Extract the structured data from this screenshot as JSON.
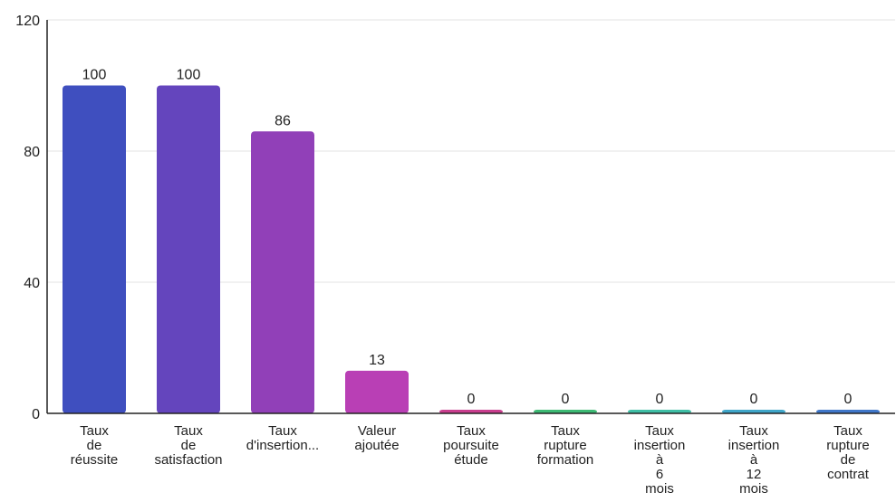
{
  "chart_data": {
    "type": "bar",
    "title": "",
    "xlabel": "",
    "ylabel": "",
    "ylim": [
      0,
      120
    ],
    "yticks": [
      0,
      40,
      80,
      120
    ],
    "grid": true,
    "categories": [
      [
        "Taux",
        "de",
        "réussite"
      ],
      [
        "Taux",
        "de",
        "satisfaction"
      ],
      [
        "Taux",
        "d'insertion..."
      ],
      [
        "Valeur",
        "ajoutée"
      ],
      [
        "Taux",
        "poursuite",
        "étude"
      ],
      [
        "Taux",
        "rupture",
        "formation"
      ],
      [
        "Taux",
        "insertion",
        "à",
        "6",
        "mois"
      ],
      [
        "Taux",
        "insertion",
        "à",
        "12",
        "mois"
      ],
      [
        "Taux",
        "rupture",
        "de",
        "contrat"
      ]
    ],
    "values": [
      100,
      100,
      86,
      13,
      0,
      0,
      0,
      0,
      0
    ],
    "value_labels": [
      "100",
      "100",
      "86",
      "13",
      "0",
      "0",
      "0",
      "0",
      "0"
    ],
    "colors": [
      "#3f4fbf",
      "#6445bd",
      "#9140b8",
      "#b93fb5",
      "#c93e8e",
      "#3dba74",
      "#3fbfa6",
      "#3fa6c9",
      "#3f77c9"
    ]
  }
}
